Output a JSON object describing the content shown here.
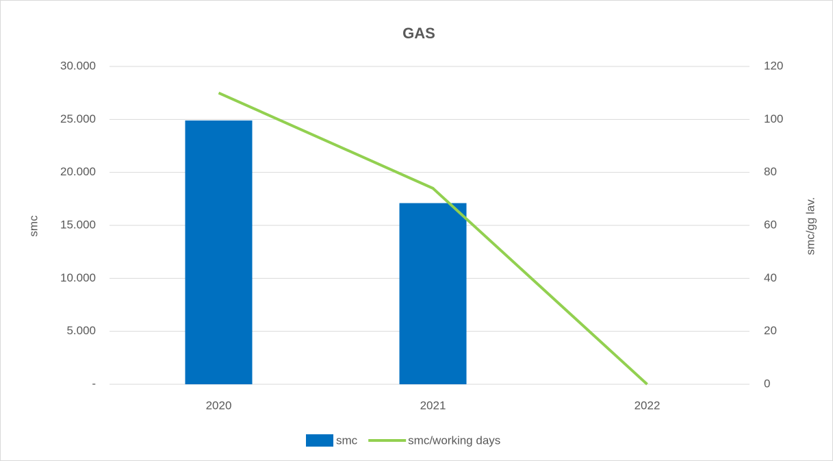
{
  "chart_data": {
    "type": "combo",
    "title": "GAS",
    "categories": [
      "2020",
      "2021",
      "2022"
    ],
    "ylabel": "smc",
    "y2label": "smc/gg lav.",
    "series": [
      {
        "name": "smc",
        "type": "bar",
        "color": "#0070c0",
        "values": [
          24900,
          17100,
          0
        ]
      },
      {
        "name": "smc/working days",
        "type": "line",
        "axis": "y2",
        "color": "#92d050",
        "values": [
          110,
          74,
          0
        ]
      }
    ],
    "ylim": [
      0,
      30000
    ],
    "yticks": [
      {
        "value": 0,
        "label": "-"
      },
      {
        "value": 5000,
        "label": "5.000"
      },
      {
        "value": 10000,
        "label": "10.000"
      },
      {
        "value": 15000,
        "label": "15.000"
      },
      {
        "value": 20000,
        "label": "20.000"
      },
      {
        "value": 25000,
        "label": "25.000"
      },
      {
        "value": 30000,
        "label": "30.000"
      }
    ],
    "y2lim": [
      0,
      120
    ],
    "y2ticks": [
      0,
      20,
      40,
      60,
      80,
      100,
      120
    ],
    "grid": true,
    "legend": "bottom"
  }
}
